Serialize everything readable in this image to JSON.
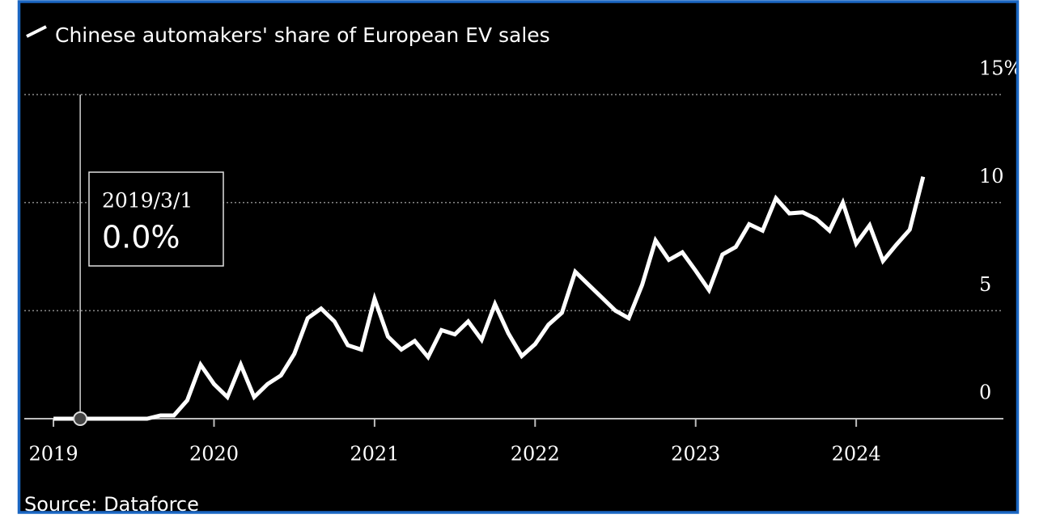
{
  "chart_data": {
    "type": "line",
    "series": [
      {
        "name": "Chinese automakers' share of European EV sales",
        "color": "#ffffff",
        "values": [
          0,
          0,
          0,
          0,
          0,
          0,
          0,
          0,
          0.15,
          0.15,
          0.85,
          2.5,
          1.6,
          1.0,
          2.5,
          1.0,
          1.6,
          2.0,
          3.0,
          4.65,
          5.1,
          4.5,
          3.4,
          3.2,
          5.55,
          3.8,
          3.2,
          3.6,
          2.85,
          4.1,
          3.9,
          4.5,
          3.65,
          5.3,
          3.95,
          2.9,
          3.45,
          4.35,
          4.9,
          6.8,
          6.2,
          5.6,
          5.0,
          4.65,
          6.2,
          8.25,
          7.35,
          7.7,
          6.85,
          5.95,
          7.6,
          7.95,
          9.0,
          8.7,
          10.2,
          9.5,
          9.55,
          9.25,
          8.7,
          10.0,
          8.1,
          8.95,
          7.3,
          8.05,
          8.75,
          11.2
        ]
      }
    ],
    "x": [
      "2019/1/1",
      "2019/2/1",
      "2019/3/1",
      "2019/4/1",
      "2019/5/1",
      "2019/6/1",
      "2019/7/1",
      "2019/8/1",
      "2019/9/1",
      "2019/10/1",
      "2019/11/1",
      "2019/12/1",
      "2020/1/1",
      "2020/2/1",
      "2020/3/1",
      "2020/4/1",
      "2020/5/1",
      "2020/6/1",
      "2020/7/1",
      "2020/8/1",
      "2020/9/1",
      "2020/10/1",
      "2020/11/1",
      "2020/12/1",
      "2021/1/1",
      "2021/2/1",
      "2021/3/1",
      "2021/4/1",
      "2021/5/1",
      "2021/6/1",
      "2021/7/1",
      "2021/8/1",
      "2021/9/1",
      "2021/10/1",
      "2021/11/1",
      "2021/12/1",
      "2022/1/1",
      "2022/2/1",
      "2022/3/1",
      "2022/4/1",
      "2022/5/1",
      "2022/6/1",
      "2022/7/1",
      "2022/8/1",
      "2022/9/1",
      "2022/10/1",
      "2022/11/1",
      "2022/12/1",
      "2023/1/1",
      "2023/2/1",
      "2023/3/1",
      "2023/4/1",
      "2023/5/1",
      "2023/6/1",
      "2023/7/1",
      "2023/8/1",
      "2023/9/1",
      "2023/10/1",
      "2023/11/1",
      "2023/12/1",
      "2024/1/1",
      "2024/2/1",
      "2024/3/1",
      "2024/4/1",
      "2024/5/1",
      "2024/6/1"
    ],
    "xlim": [
      "2018/11/1",
      "2024/12/1"
    ],
    "xticks": [
      {
        "value": "2019/1/1",
        "label": "2019"
      },
      {
        "value": "2020/1/1",
        "label": "2020"
      },
      {
        "value": "2021/1/1",
        "label": "2021"
      },
      {
        "value": "2022/1/1",
        "label": "2022"
      },
      {
        "value": "2023/1/1",
        "label": "2023"
      },
      {
        "value": "2024/1/1",
        "label": "2024"
      }
    ],
    "ylim": [
      0,
      15
    ],
    "yticks": [
      0,
      5,
      10,
      {
        "value": 15,
        "label": "15%"
      }
    ],
    "grid": true,
    "tooltip": {
      "x": "2019/3/1",
      "value": 0,
      "label": "0.0%"
    },
    "source": "Source: Dataforce"
  }
}
